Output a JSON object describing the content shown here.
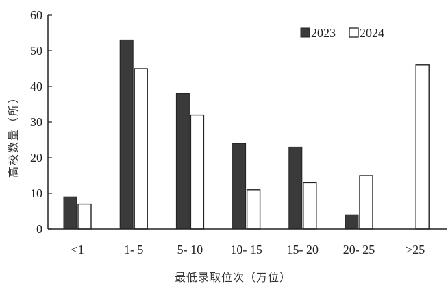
{
  "chart_data": {
    "type": "bar",
    "title": "",
    "xlabel": "最低录取位次（万位）",
    "ylabel": "高校数量（所）",
    "categories": [
      "<1",
      "1- 5",
      "5- 10",
      "10- 15",
      "15- 20",
      "20- 25",
      ">25"
    ],
    "series": [
      {
        "name": "2023",
        "values": [
          9,
          53,
          38,
          24,
          23,
          4,
          0
        ],
        "color": "#3a3a3a"
      },
      {
        "name": "2024",
        "values": [
          7,
          45,
          32,
          11,
          13,
          15,
          46
        ],
        "color": "#ffffff"
      }
    ],
    "ylim": [
      0,
      60
    ],
    "yticks": [
      0,
      10,
      20,
      30,
      40,
      50,
      60
    ],
    "grid": false,
    "legend": "top-right"
  }
}
